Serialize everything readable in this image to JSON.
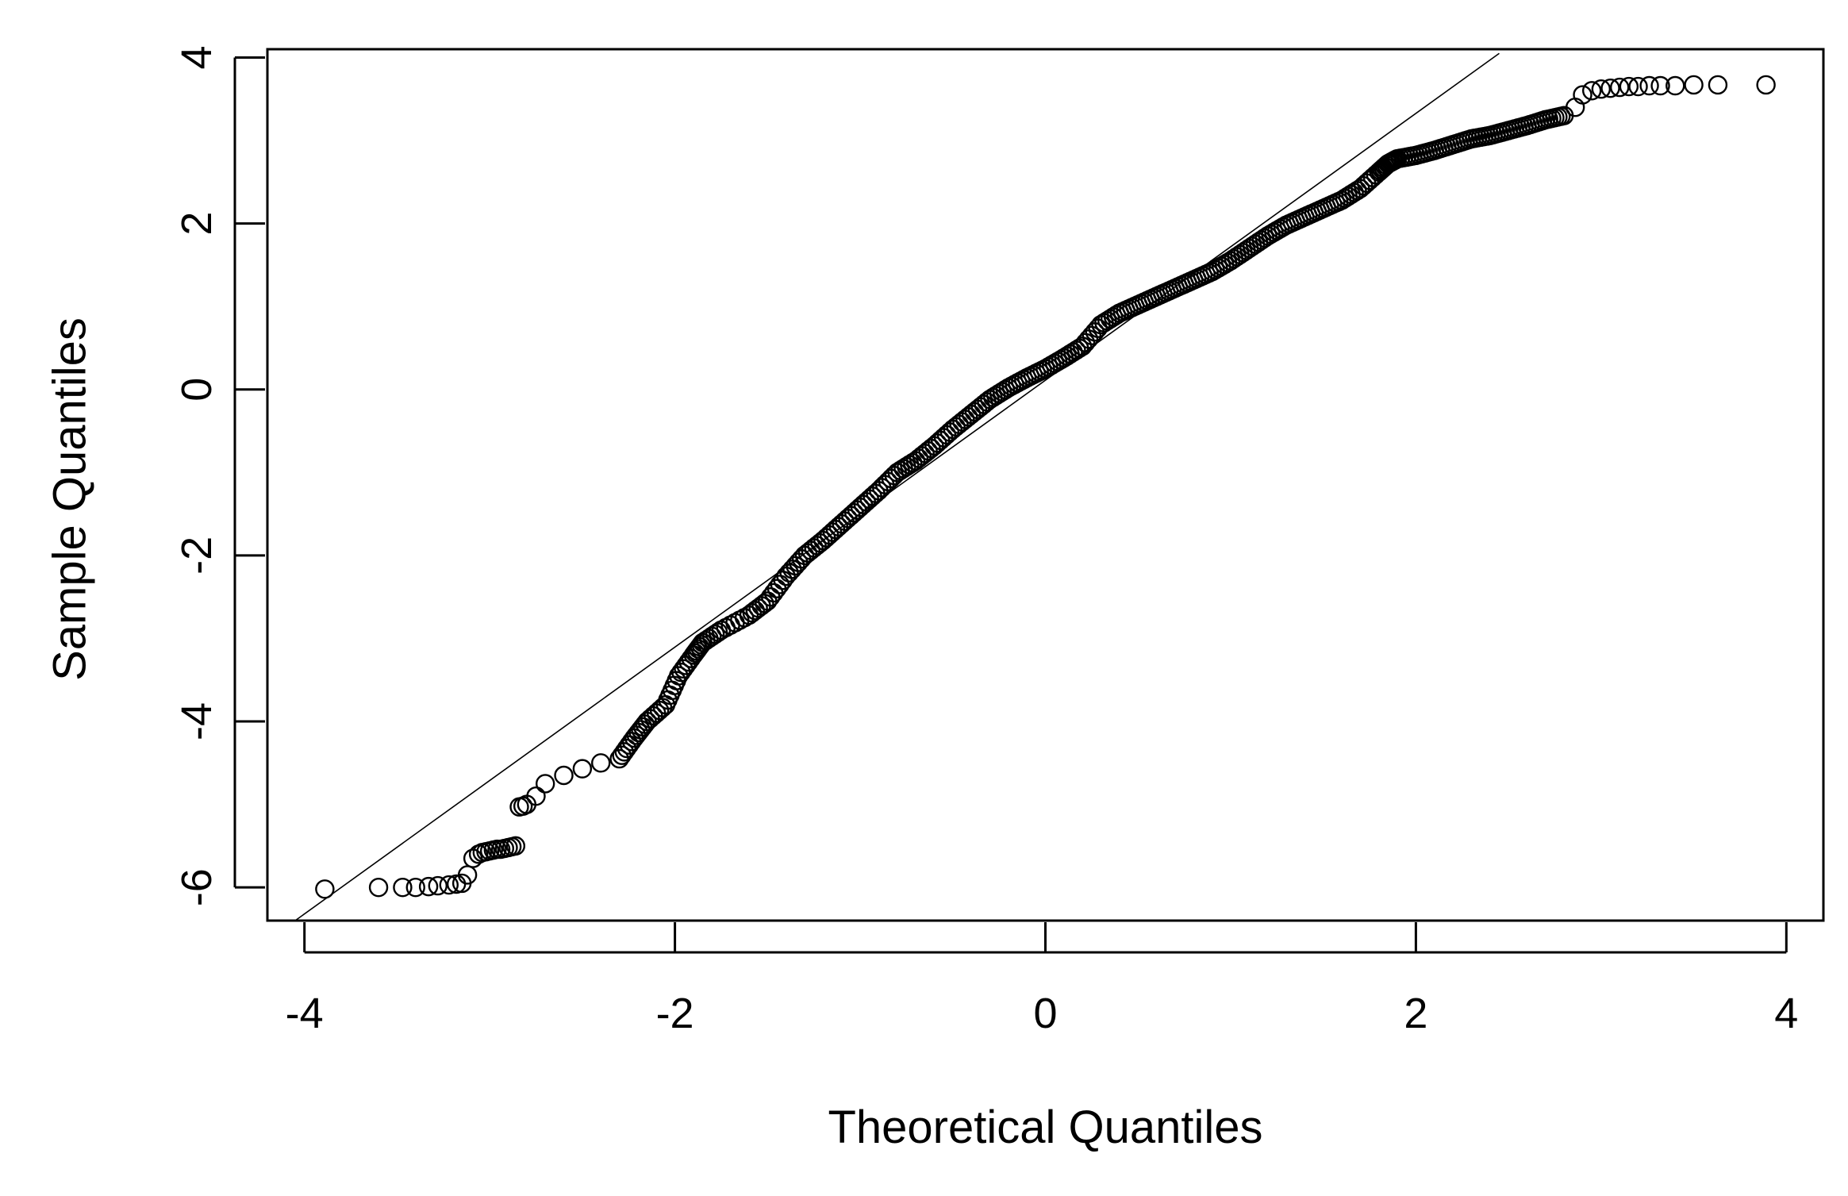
{
  "chart_data": {
    "type": "scatter",
    "title": "",
    "xlabel": "Theoretical Quantiles",
    "ylabel": "Sample Quantiles",
    "xlim": [
      -4.2,
      4.2
    ],
    "ylim": [
      -6.4,
      4.1
    ],
    "x_ticks": [
      -4,
      -2,
      0,
      2,
      4
    ],
    "x_tick_labels": [
      "-4",
      "-2",
      "0",
      "2",
      "4"
    ],
    "y_ticks": [
      -6,
      -4,
      -2,
      0,
      2,
      4
    ],
    "y_tick_labels": [
      "-6",
      "-4",
      "-2",
      "0",
      "2",
      "4"
    ],
    "grid": false,
    "legend": "none",
    "marker": "open-circle",
    "reference_line": {
      "x": [
        -4.05,
        2.45
      ],
      "y": [
        -6.4,
        4.05
      ]
    },
    "series": [
      {
        "x": [
          -3.89,
          -3.6,
          -3.47,
          -3.4,
          -3.33,
          -3.28,
          -3.22,
          -3.18,
          -3.15,
          -3.12,
          -3.09,
          -3.06,
          -3.04,
          -3.02,
          -3.0,
          -2.98,
          -2.96,
          -2.94,
          -2.92,
          -2.9,
          -2.88,
          -2.86,
          -2.84,
          -2.82,
          -2.8,
          -2.75,
          -2.7,
          -2.6,
          -2.5,
          -2.4,
          -2.3,
          -2.22,
          -2.15,
          -2.05,
          -1.98,
          -1.9,
          -1.85,
          -1.75,
          -1.6,
          -1.5,
          -1.4,
          -1.3,
          -1.2,
          -1.1,
          -1.0,
          -0.9,
          -0.8,
          -0.7,
          -0.6,
          -0.5,
          -0.4,
          -0.3,
          -0.2,
          -0.1,
          0.0,
          0.1,
          0.2,
          0.3,
          0.4,
          0.5,
          0.6,
          0.7,
          0.8,
          0.9,
          1.0,
          1.1,
          1.2,
          1.3,
          1.4,
          1.5,
          1.6,
          1.7,
          1.8,
          1.85,
          1.9,
          2.0,
          2.1,
          2.2,
          2.3,
          2.4,
          2.5,
          2.6,
          2.7,
          2.8,
          2.86,
          2.9,
          2.95,
          3.0,
          3.05,
          3.1,
          3.15,
          3.2,
          3.26,
          3.32,
          3.4,
          3.5,
          3.63,
          3.89
        ],
        "y": [
          -6.02,
          -6.0,
          -6.0,
          -6.0,
          -5.99,
          -5.98,
          -5.97,
          -5.96,
          -5.95,
          -5.85,
          -5.65,
          -5.6,
          -5.58,
          -5.57,
          -5.56,
          -5.55,
          -5.54,
          -5.54,
          -5.53,
          -5.52,
          -5.51,
          -5.5,
          -5.03,
          -5.02,
          -5.0,
          -4.9,
          -4.75,
          -4.65,
          -4.57,
          -4.5,
          -4.45,
          -4.2,
          -4.0,
          -3.8,
          -3.45,
          -3.2,
          -3.05,
          -2.9,
          -2.72,
          -2.55,
          -2.25,
          -2.0,
          -1.82,
          -1.62,
          -1.42,
          -1.22,
          -1.0,
          -0.86,
          -0.68,
          -0.48,
          -0.3,
          -0.12,
          0.02,
          0.14,
          0.25,
          0.38,
          0.52,
          0.78,
          0.92,
          1.02,
          1.12,
          1.22,
          1.32,
          1.42,
          1.55,
          1.7,
          1.85,
          1.98,
          2.08,
          2.18,
          2.28,
          2.42,
          2.62,
          2.72,
          2.78,
          2.82,
          2.88,
          2.95,
          3.02,
          3.06,
          3.12,
          3.18,
          3.25,
          3.3,
          3.4,
          3.55,
          3.6,
          3.62,
          3.63,
          3.64,
          3.65,
          3.65,
          3.66,
          3.66,
          3.66,
          3.67,
          3.67,
          3.67
        ]
      }
    ]
  }
}
